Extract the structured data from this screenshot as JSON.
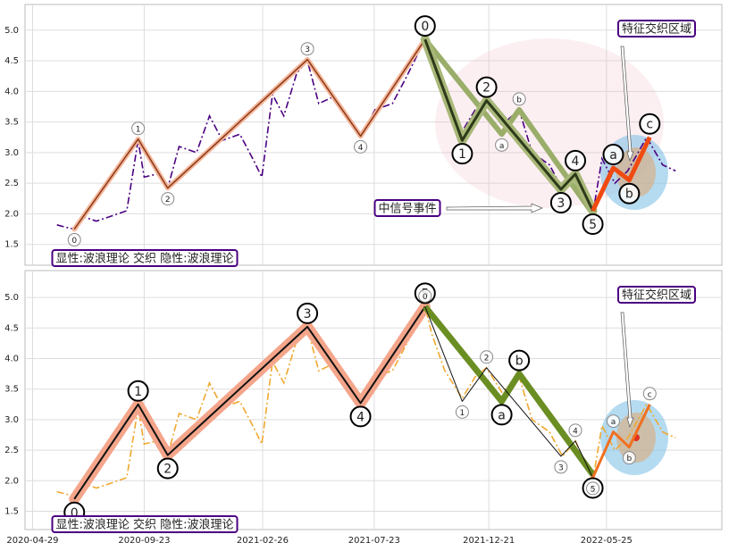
{
  "chart_data": [
    {
      "type": "line",
      "xlim": [
        "2020-04-19",
        "2022-10-24"
      ],
      "ylim": [
        1.16,
        5.42
      ],
      "xticks": [
        "2020-04-29",
        "2020-09-23",
        "2021-02-26",
        "2021-07-23",
        "2021-12-21",
        "2022-05-25"
      ],
      "show_xtick_labels": false,
      "yticks": [
        1.5,
        {
          "value": 2,
          "label": "2.0"
        },
        2.5,
        {
          "value": 3,
          "label": "3.0"
        },
        3.5,
        {
          "value": 4,
          "label": "4.0"
        },
        4.5,
        {
          "value": 5,
          "label": "5.0"
        }
      ],
      "grid": true,
      "x": [
        "2020-05-31",
        "2020-06-12",
        "2020-06-23",
        "2020-07-05",
        "2020-07-22",
        "2020-08-08",
        "2020-08-31",
        "2020-09-15",
        "2020-09-23",
        "2020-10-10",
        "2020-10-24",
        "2020-11-08",
        "2020-12-01",
        "2020-12-18",
        "2021-01-04",
        "2021-01-27",
        "2021-02-13",
        "2021-02-25",
        "2021-03-11",
        "2021-03-26",
        "2021-04-12",
        "2021-04-26",
        "2021-05-11",
        "2021-05-28",
        "2021-06-20",
        "2021-07-05",
        "2021-07-24",
        "2021-08-16",
        "2021-09-02",
        "2021-09-28",
        "2021-10-07",
        "2021-10-24",
        "2021-11-16",
        "2021-12-03",
        "2021-12-18",
        "2022-01-07",
        "2022-01-30",
        "2022-02-16",
        "2022-03-11",
        "2022-03-28",
        "2022-04-14",
        "2022-05-07",
        "2022-05-19",
        "2022-06-05",
        "2022-06-22",
        "2022-07-17",
        "2022-08-07",
        "2022-08-24"
      ],
      "series": [
        {
          "color": "#4b0082",
          "dash": "8 3 2 3",
          "values": [
            1.82,
            1.78,
            1.75,
            1.95,
            1.88,
            1.95,
            2.05,
            3.2,
            2.6,
            2.65,
            2.42,
            3.1,
            3.0,
            3.6,
            3.2,
            3.3,
            2.9,
            2.6,
            3.95,
            3.6,
            4.3,
            4.5,
            3.8,
            3.9,
            3.5,
            3.25,
            3.7,
            3.8,
            4.2,
            4.85,
            4.4,
            3.8,
            3.35,
            3.7,
            3.85,
            3.45,
            3.7,
            3.0,
            2.8,
            2.4,
            2.65,
            2.0,
            2.9,
            2.5,
            2.7,
            3.25,
            2.8,
            2.7
          ]
        }
      ],
      "waves": [
        {
          "color": "#8b3a1a",
          "width": 1.5,
          "halo": "#f4b69a",
          "halo_width": 4,
          "size": "small",
          "x": [
            "2020-06-23",
            "2020-09-15",
            "2020-10-24",
            "2021-04-26",
            "2021-07-05",
            "2021-09-28"
          ],
          "values": [
            1.75,
            3.22,
            2.42,
            4.52,
            3.27,
            4.85
          ],
          "labels": [
            "0",
            "1",
            "2",
            "3",
            "4",
            "5"
          ]
        },
        {
          "color": "#9aae6a",
          "width": 6,
          "size": "small",
          "x": [
            "2021-09-28",
            "2022-01-07",
            "2022-01-30",
            "2022-05-07"
          ],
          "values": [
            4.85,
            3.3,
            3.7,
            2.0
          ],
          "labels": [
            null,
            "a",
            "b",
            "c"
          ]
        },
        {
          "color": "#2d3a1a",
          "width": 3,
          "halo": "#a8b878",
          "halo_width": 7,
          "size": "large",
          "x": [
            "2021-09-28",
            "2021-11-16",
            "2021-12-18",
            "2022-03-26",
            "2022-04-14",
            "2022-05-07"
          ],
          "values": [
            4.85,
            3.2,
            3.85,
            2.4,
            2.65,
            2.05
          ],
          "labels": [
            "0",
            "1",
            "2",
            "3",
            "4",
            "5"
          ]
        },
        {
          "color": "#f04a10",
          "width": 5,
          "size": "large",
          "x": [
            "2022-05-07",
            "2022-06-03",
            "2022-06-24",
            "2022-07-21"
          ],
          "values": [
            2.05,
            2.75,
            2.55,
            3.25
          ],
          "labels": [
            null,
            "a",
            "b",
            "c"
          ]
        }
      ],
      "annotations": [
        {
          "text": "特征交织区域",
          "color": "#1a7fb5"
        },
        {
          "text": "中信号事件",
          "color": "#c0392b"
        },
        {
          "text": "显性:波浪理论 交织 隐性:波浪理论",
          "color": "#1a7fb5"
        }
      ]
    },
    {
      "type": "line",
      "xlim": [
        "2020-04-19",
        "2022-10-24"
      ],
      "ylim": [
        1.2,
        5.44
      ],
      "xticks": [
        "2020-04-29",
        "2020-09-23",
        "2021-02-26",
        "2021-07-23",
        "2021-12-21",
        "2022-05-25"
      ],
      "show_xtick_labels": true,
      "yticks": [
        1.5,
        {
          "value": 2,
          "label": "2.0"
        },
        2.5,
        {
          "value": 3,
          "label": "3.0"
        },
        3.5,
        {
          "value": 4,
          "label": "4.0"
        },
        4.5,
        {
          "value": 5,
          "label": "5.0"
        }
      ],
      "grid": true,
      "x": [
        "2020-05-31",
        "2020-06-12",
        "2020-06-23",
        "2020-07-05",
        "2020-07-22",
        "2020-08-08",
        "2020-08-31",
        "2020-09-15",
        "2020-09-23",
        "2020-10-10",
        "2020-10-24",
        "2020-11-08",
        "2020-12-01",
        "2020-12-18",
        "2021-01-04",
        "2021-01-27",
        "2021-02-13",
        "2021-02-25",
        "2021-03-11",
        "2021-03-26",
        "2021-04-12",
        "2021-04-26",
        "2021-05-11",
        "2021-05-28",
        "2021-06-20",
        "2021-07-05",
        "2021-07-24",
        "2021-08-16",
        "2021-09-02",
        "2021-09-28",
        "2021-10-07",
        "2021-10-24",
        "2021-11-16",
        "2021-12-03",
        "2021-12-18",
        "2022-01-07",
        "2022-01-30",
        "2022-02-16",
        "2022-03-11",
        "2022-03-28",
        "2022-04-14",
        "2022-05-07",
        "2022-05-19",
        "2022-06-05",
        "2022-06-22",
        "2022-07-17",
        "2022-08-07",
        "2022-08-24"
      ],
      "series": [
        {
          "color": "#f0a830",
          "dash": "8 3 2 3",
          "values": [
            1.82,
            1.78,
            1.75,
            1.95,
            1.88,
            1.95,
            2.05,
            3.2,
            2.6,
            2.65,
            2.42,
            3.1,
            3.0,
            3.6,
            3.2,
            3.3,
            2.9,
            2.6,
            3.95,
            3.6,
            4.3,
            4.5,
            3.8,
            3.9,
            3.5,
            3.25,
            3.7,
            3.8,
            4.2,
            4.85,
            4.4,
            3.8,
            3.35,
            3.7,
            3.85,
            3.45,
            3.7,
            3.0,
            2.8,
            2.4,
            2.65,
            2.0,
            2.9,
            2.5,
            2.7,
            3.25,
            2.8,
            2.7
          ]
        }
      ],
      "waves": [
        {
          "color": "#111111",
          "width": 2,
          "halo": "#f4a58a",
          "halo_width": 10,
          "size": "large",
          "x": [
            "2020-06-23",
            "2020-09-15",
            "2020-10-24",
            "2021-04-26",
            "2021-07-05",
            "2021-09-28"
          ],
          "values": [
            1.7,
            3.25,
            2.42,
            4.52,
            3.27,
            4.85
          ],
          "labels": [
            "0",
            "1",
            "2",
            "3",
            "4",
            "5"
          ]
        },
        {
          "color": "#6b8e23",
          "width": 7,
          "size": "large",
          "x": [
            "2021-09-28",
            "2022-01-07",
            "2022-01-30",
            "2022-05-07"
          ],
          "values": [
            4.85,
            3.3,
            3.75,
            2.1
          ],
          "labels": [
            null,
            "a",
            "b",
            "c"
          ]
        },
        {
          "color": "#111111",
          "width": 1,
          "size": "small",
          "x": [
            "2021-09-28",
            "2021-11-16",
            "2021-12-18",
            "2022-03-26",
            "2022-04-14",
            "2022-05-07"
          ],
          "values": [
            4.85,
            3.3,
            3.85,
            2.4,
            2.65,
            2.05
          ],
          "labels": [
            "0",
            "1",
            "2",
            "3",
            "4",
            "5"
          ]
        },
        {
          "color": "#f07020",
          "width": 3,
          "size": "small",
          "x": [
            "2022-05-07",
            "2022-06-03",
            "2022-06-24",
            "2022-07-21"
          ],
          "values": [
            2.05,
            2.8,
            2.55,
            3.25
          ],
          "labels": [
            null,
            "a",
            "b",
            "c"
          ]
        }
      ],
      "annotations": [
        {
          "text": "特征交织区域",
          "color": "#1a7fb5"
        },
        {
          "text": "显性:波浪理论 交织 隐性:波浪理论",
          "color": "#1a7fb5"
        }
      ]
    }
  ]
}
